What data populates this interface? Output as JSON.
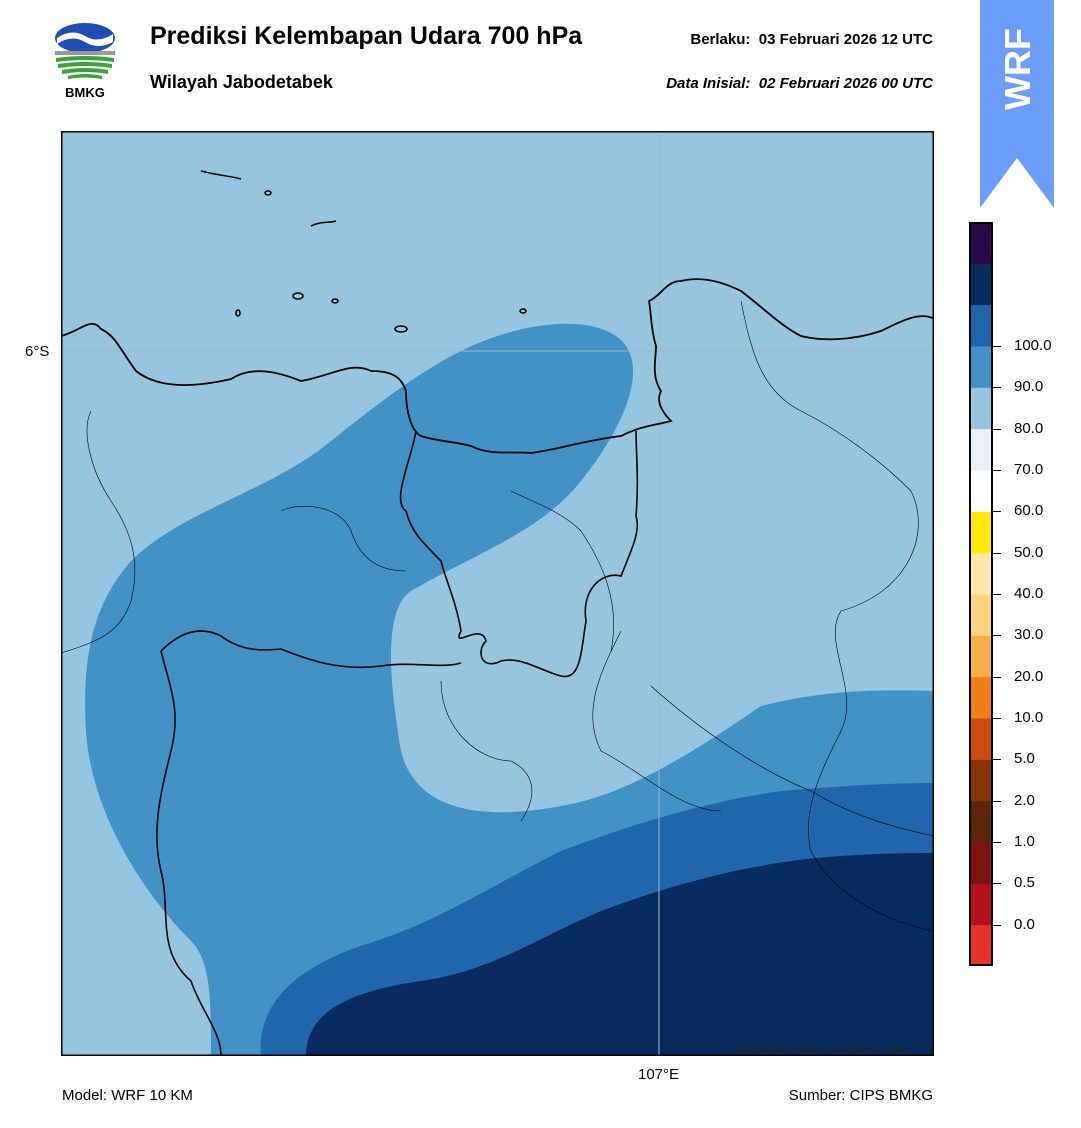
{
  "header": {
    "logo_text": "BMKG",
    "title": "Prediksi Kelembapan Udara 700 hPa",
    "subtitle": "Wilayah Jabodetabek",
    "valid_label": "Berlaku:",
    "valid_time": "03 Februari 2026 12 UTC",
    "init_label": "Data Inisial:",
    "init_time": "02 Februari 2026 00 UTC"
  },
  "badge": {
    "text": "WRF",
    "color": "#6b9dfa"
  },
  "map": {
    "lat_label": "6°S",
    "lon_label": "107°E",
    "copyright": "©Sub Bidang Prediksi Cuaca BMKG, 2020"
  },
  "footer": {
    "model": "Model: WRF 10 KM",
    "source": "Sumber: CIPS BMKG"
  },
  "colorbar": {
    "colors": [
      "#e8352b",
      "#b4111a",
      "#7a1410",
      "#5c2708",
      "#8a3506",
      "#c94b0d",
      "#f07f1c",
      "#fbad48",
      "#fdd37d",
      "#fee8a8",
      "#ffea00",
      "#ffffff",
      "#e9f1f7",
      "#95c5df",
      "#4392c6",
      "#2066ad",
      "#082c5e",
      "#2a0a4a"
    ],
    "labels": [
      "0.0",
      "0.5",
      "1.0",
      "2.0",
      "5.0",
      "10.0",
      "20.0",
      "30.0",
      "40.0",
      "50.0",
      "60.0",
      "70.0",
      "80.0",
      "90.0",
      "100.0"
    ]
  }
}
